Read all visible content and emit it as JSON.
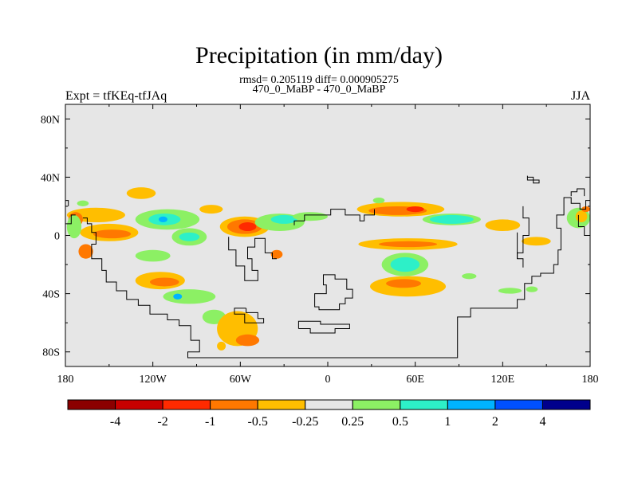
{
  "chart_data": {
    "type": "heatmap",
    "title": "Precipitation (in mm/day)",
    "subtitle_line1": "rmsd= 0.205119 diff= 0.000905275",
    "subtitle_line2": "470_0_MaBP - 470_0_MaBP",
    "left_label": "Expt = tfKEq-tfJAq",
    "right_label": "JJA",
    "xlim": [
      -180,
      180
    ],
    "ylim": [
      -90,
      90
    ],
    "x_ticks": [
      {
        "value": -180,
        "label": "180"
      },
      {
        "value": -120,
        "label": "120W"
      },
      {
        "value": -60,
        "label": "60W"
      },
      {
        "value": 0,
        "label": "0"
      },
      {
        "value": 60,
        "label": "60E"
      },
      {
        "value": 120,
        "label": "120E"
      },
      {
        "value": 180,
        "label": "180"
      }
    ],
    "y_ticks": [
      {
        "value": 80,
        "label": "80N"
      },
      {
        "value": 40,
        "label": "40N"
      },
      {
        "value": 0,
        "label": "0"
      },
      {
        "value": -40,
        "label": "40S"
      },
      {
        "value": -80,
        "label": "80S"
      }
    ],
    "background_color": "#e6e6e6",
    "colorbar": {
      "colors": [
        "#8b0000",
        "#c80000",
        "#ff2a00",
        "#ff7800",
        "#ffbe00",
        "#e6e6e6",
        "#8cf064",
        "#2df0c8",
        "#00b4ff",
        "#0050ff",
        "#00008c"
      ],
      "labels": [
        "-4",
        "-2",
        "-1",
        "-0.5",
        "-0.25",
        "0.25",
        "0.5",
        "1",
        "2",
        "4"
      ]
    },
    "anomaly_regions": [
      {
        "lon": -159,
        "lat": 14,
        "rlon": 20,
        "rlat": 5,
        "level": "-0.25"
      },
      {
        "lon": -173,
        "lat": 11,
        "rlon": 5,
        "rlat": 5,
        "level": "-0.5"
      },
      {
        "lon": -150,
        "lat": 2,
        "rlon": 20,
        "rlat": 6,
        "level": "-0.25"
      },
      {
        "lon": -148,
        "lat": 1,
        "rlon": 13,
        "rlat": 3,
        "level": "-0.5"
      },
      {
        "lon": -166,
        "lat": -11,
        "rlon": 5,
        "rlat": 5,
        "level": "-0.5"
      },
      {
        "lon": -174,
        "lat": 6,
        "rlon": 5,
        "rlat": 8,
        "level": "0.25"
      },
      {
        "lon": -110,
        "lat": 11,
        "rlon": 22,
        "rlat": 7,
        "level": "0.25"
      },
      {
        "lon": -112,
        "lat": 11,
        "rlon": 11,
        "rlat": 4,
        "level": "0.5"
      },
      {
        "lon": -113,
        "lat": 11,
        "rlon": 3,
        "rlat": 2,
        "level": "1"
      },
      {
        "lon": -95,
        "lat": -1,
        "rlon": 12,
        "rlat": 6,
        "level": "0.25"
      },
      {
        "lon": -95,
        "lat": -1,
        "rlon": 7,
        "rlat": 3,
        "level": "0.5"
      },
      {
        "lon": -128,
        "lat": 29,
        "rlon": 10,
        "rlat": 4,
        "level": "-0.25"
      },
      {
        "lon": -80,
        "lat": 18,
        "rlon": 8,
        "rlat": 3,
        "level": "-0.25"
      },
      {
        "lon": -120,
        "lat": -14,
        "rlon": 12,
        "rlat": 4,
        "level": "0.25"
      },
      {
        "lon": -115,
        "lat": -31,
        "rlon": 17,
        "rlat": 6,
        "level": "-0.25"
      },
      {
        "lon": -112,
        "lat": -32,
        "rlon": 10,
        "rlat": 3,
        "level": "-0.5"
      },
      {
        "lon": -95,
        "lat": -42,
        "rlon": 18,
        "rlat": 5,
        "level": "0.25"
      },
      {
        "lon": -103,
        "lat": -42,
        "rlon": 3,
        "rlat": 2,
        "level": "1"
      },
      {
        "lon": -78,
        "lat": -56,
        "rlon": 8,
        "rlat": 5,
        "level": "0.25"
      },
      {
        "lon": -62,
        "lat": -64,
        "rlon": 14,
        "rlat": 12,
        "level": "-0.25"
      },
      {
        "lon": -55,
        "lat": -72,
        "rlon": 8,
        "rlat": 4,
        "level": "-0.5"
      },
      {
        "lon": -73,
        "lat": -76,
        "rlon": 3,
        "rlat": 3,
        "level": "-0.25"
      },
      {
        "lon": -57,
        "lat": 6,
        "rlon": 17,
        "rlat": 7,
        "level": "-0.25"
      },
      {
        "lon": -57,
        "lat": 6,
        "rlon": 12,
        "rlat": 5,
        "level": "-0.5"
      },
      {
        "lon": -55,
        "lat": 6,
        "rlon": 6,
        "rlat": 3,
        "level": "-1"
      },
      {
        "lon": -33,
        "lat": 9,
        "rlon": 17,
        "rlat": 6,
        "level": "0.25"
      },
      {
        "lon": -30,
        "lat": 11,
        "rlon": 9,
        "rlat": 3,
        "level": "0.5"
      },
      {
        "lon": -12,
        "lat": 13,
        "rlon": 12,
        "rlat": 3,
        "level": "0.25"
      },
      {
        "lon": -35,
        "lat": -13,
        "rlon": 4,
        "rlat": 3,
        "level": "-0.5"
      },
      {
        "lon": 50,
        "lat": 18,
        "rlon": 30,
        "rlat": 5,
        "level": "-0.25"
      },
      {
        "lon": 48,
        "lat": 17,
        "rlon": 20,
        "rlat": 3,
        "level": "-0.5"
      },
      {
        "lon": 60,
        "lat": 18,
        "rlon": 6,
        "rlat": 2,
        "level": "-1"
      },
      {
        "lon": 85,
        "lat": 11,
        "rlon": 20,
        "rlat": 4,
        "level": "0.25"
      },
      {
        "lon": 85,
        "lat": 11,
        "rlon": 15,
        "rlat": 3,
        "level": "0.5"
      },
      {
        "lon": 35,
        "lat": 24,
        "rlon": 4,
        "rlat": 2,
        "level": "0.25"
      },
      {
        "lon": 55,
        "lat": -6,
        "rlon": 34,
        "rlat": 4,
        "level": "-0.25"
      },
      {
        "lon": 55,
        "lat": -6,
        "rlon": 20,
        "rlat": 2,
        "level": "-0.5"
      },
      {
        "lon": 53,
        "lat": -20,
        "rlon": 16,
        "rlat": 8,
        "level": "0.25"
      },
      {
        "lon": 53,
        "lat": -20,
        "rlon": 10,
        "rlat": 5,
        "level": "0.5"
      },
      {
        "lon": 55,
        "lat": -35,
        "rlon": 26,
        "rlat": 7,
        "level": "-0.25"
      },
      {
        "lon": 52,
        "lat": -33,
        "rlon": 12,
        "rlat": 3,
        "level": "-0.5"
      },
      {
        "lon": 97,
        "lat": -28,
        "rlon": 5,
        "rlat": 2,
        "level": "0.25"
      },
      {
        "lon": 120,
        "lat": 7,
        "rlon": 12,
        "rlat": 4,
        "level": "-0.25"
      },
      {
        "lon": 125,
        "lat": -38,
        "rlon": 8,
        "rlat": 2,
        "level": "0.25"
      },
      {
        "lon": 143,
        "lat": -4,
        "rlon": 10,
        "rlat": 3,
        "level": "-0.25"
      },
      {
        "lon": 172,
        "lat": 12,
        "rlon": 8,
        "rlat": 7,
        "level": "0.25"
      },
      {
        "lon": 174,
        "lat": 13,
        "rlon": 4,
        "rlat": 4,
        "level": "-0.25"
      },
      {
        "lon": 177,
        "lat": 18,
        "rlon": 3,
        "rlat": 2,
        "level": "-0.5"
      },
      {
        "lon": -168,
        "lat": 22,
        "rlon": 4,
        "rlat": 2,
        "level": "0.25"
      },
      {
        "lon": 140,
        "lat": -37,
        "rlon": 4,
        "rlat": 2,
        "level": "0.25"
      }
    ],
    "coastlines": [
      [
        [
          -168,
          12
        ],
        [
          -165,
          12
        ],
        [
          -165,
          8
        ],
        [
          -162,
          8
        ],
        [
          -162,
          2
        ],
        [
          -159,
          2
        ],
        [
          -159,
          -6
        ],
        [
          -162,
          -6
        ],
        [
          -162,
          -16
        ],
        [
          -155,
          -16
        ],
        [
          -155,
          -24
        ],
        [
          -152,
          -24
        ],
        [
          -152,
          -32
        ],
        [
          -145,
          -32
        ],
        [
          -145,
          -38
        ],
        [
          -138,
          -38
        ],
        [
          -138,
          -44
        ],
        [
          -130,
          -44
        ],
        [
          -130,
          -48
        ],
        [
          -122,
          -48
        ],
        [
          -122,
          -54
        ],
        [
          -110,
          -54
        ],
        [
          -110,
          -58
        ],
        [
          -102,
          -58
        ],
        [
          -102,
          -62
        ],
        [
          -94,
          -62
        ],
        [
          -94,
          -72
        ],
        [
          -88,
          -72
        ],
        [
          -88,
          -80
        ],
        [
          -96,
          -80
        ],
        [
          -96,
          -84
        ],
        [
          -55,
          -84
        ],
        [
          -10,
          -84
        ],
        [
          60,
          -84
        ],
        [
          89,
          -84
        ],
        [
          89,
          -56
        ],
        [
          98,
          -56
        ],
        [
          98,
          -50
        ],
        [
          130,
          -50
        ],
        [
          130,
          -44
        ],
        [
          135,
          -44
        ],
        [
          135,
          -33
        ],
        [
          140,
          -33
        ],
        [
          140,
          -28
        ],
        [
          146,
          -28
        ],
        [
          146,
          -26
        ],
        [
          155,
          -26
        ],
        [
          155,
          -20
        ],
        [
          158,
          -20
        ],
        [
          158,
          -10
        ],
        [
          160,
          -10
        ],
        [
          160,
          5
        ],
        [
          157,
          5
        ],
        [
          157,
          14
        ],
        [
          162,
          14
        ],
        [
          162,
          26
        ],
        [
          167,
          26
        ],
        [
          167,
          22
        ],
        [
          173,
          22
        ],
        [
          173,
          18
        ],
        [
          177,
          18
        ],
        [
          177,
          24
        ],
        [
          180,
          24
        ]
      ],
      [
        [
          -56,
          -50
        ],
        [
          -64,
          -50
        ],
        [
          -64,
          -54
        ],
        [
          -57,
          -54
        ],
        [
          -57,
          -60
        ],
        [
          -44,
          -60
        ],
        [
          -44,
          -57
        ],
        [
          -48,
          -57
        ],
        [
          -48,
          -53
        ],
        [
          -56,
          -53
        ],
        [
          -56,
          -50
        ]
      ],
      [
        [
          -68,
          -1
        ],
        [
          -68,
          -10
        ],
        [
          -63,
          -10
        ],
        [
          -63,
          -21
        ],
        [
          -57,
          -21
        ],
        [
          -57,
          -31
        ],
        [
          -48,
          -31
        ],
        [
          -48,
          -24
        ],
        [
          -52,
          -24
        ],
        [
          -52,
          -16
        ],
        [
          -55,
          -16
        ],
        [
          -55,
          -8
        ],
        [
          -50,
          -8
        ],
        [
          -50,
          -2
        ],
        [
          -43,
          -2
        ],
        [
          -43,
          -12
        ],
        [
          -38,
          -12
        ],
        [
          -38,
          -16
        ],
        [
          -35,
          -16
        ]
      ],
      [
        [
          -20,
          -64
        ],
        [
          -20,
          -59
        ],
        [
          -5,
          -59
        ],
        [
          -5,
          -61
        ],
        [
          15,
          -61
        ],
        [
          15,
          -64
        ],
        [
          5,
          -64
        ],
        [
          5,
          -67
        ],
        [
          -12,
          -67
        ],
        [
          -12,
          -64
        ],
        [
          -20,
          -64
        ]
      ],
      [
        [
          -9,
          -44
        ],
        [
          -9,
          -49
        ],
        [
          -6,
          -49
        ],
        [
          -6,
          -51
        ],
        [
          8,
          -51
        ],
        [
          8,
          -47
        ],
        [
          12,
          -47
        ],
        [
          12,
          -43
        ],
        [
          17,
          -43
        ],
        [
          17,
          -37
        ],
        [
          13,
          -37
        ],
        [
          13,
          -30
        ],
        [
          5,
          -30
        ],
        [
          5,
          -27
        ],
        [
          -3,
          -27
        ],
        [
          -3,
          -34
        ],
        [
          -1,
          -34
        ],
        [
          -1,
          -40
        ],
        [
          -9,
          -40
        ],
        [
          -9,
          -44
        ]
      ],
      [
        [
          -23,
          7
        ],
        [
          -23,
          10
        ],
        [
          -16,
          10
        ],
        [
          -16,
          14
        ],
        [
          2,
          14
        ],
        [
          2,
          18
        ],
        [
          12,
          18
        ],
        [
          12,
          14
        ],
        [
          22,
          14
        ],
        [
          22,
          10
        ],
        [
          25,
          10
        ],
        [
          25,
          14
        ],
        [
          32,
          14
        ],
        [
          32,
          18
        ]
      ],
      [
        [
          137,
          41
        ],
        [
          137,
          38
        ],
        [
          145,
          38
        ],
        [
          145,
          36
        ],
        [
          141,
          36
        ],
        [
          141,
          40
        ],
        [
          137,
          40
        ]
      ],
      [
        [
          167,
          27
        ],
        [
          167,
          30
        ],
        [
          171,
          30
        ],
        [
          171,
          32
        ],
        [
          176,
          32
        ],
        [
          176,
          27
        ]
      ],
      [
        [
          134,
          20
        ],
        [
          134,
          12
        ],
        [
          138,
          12
        ],
        [
          138,
          0
        ],
        [
          134,
          0
        ],
        [
          134,
          -12
        ],
        [
          130,
          -12
        ],
        [
          130,
          -16
        ],
        [
          134,
          -16
        ],
        [
          134,
          -22
        ]
      ],
      [
        [
          130,
          2
        ],
        [
          130,
          -16
        ]
      ],
      [
        [
          172,
          14
        ],
        [
          172,
          6
        ],
        [
          176,
          6
        ],
        [
          176,
          0
        ],
        [
          180,
          0
        ]
      ],
      [
        [
          -173,
          14
        ],
        [
          -176,
          14
        ],
        [
          -176,
          8
        ],
        [
          -180,
          8
        ]
      ],
      [
        [
          -180,
          24
        ],
        [
          -178,
          24
        ],
        [
          -178,
          20
        ]
      ]
    ]
  }
}
